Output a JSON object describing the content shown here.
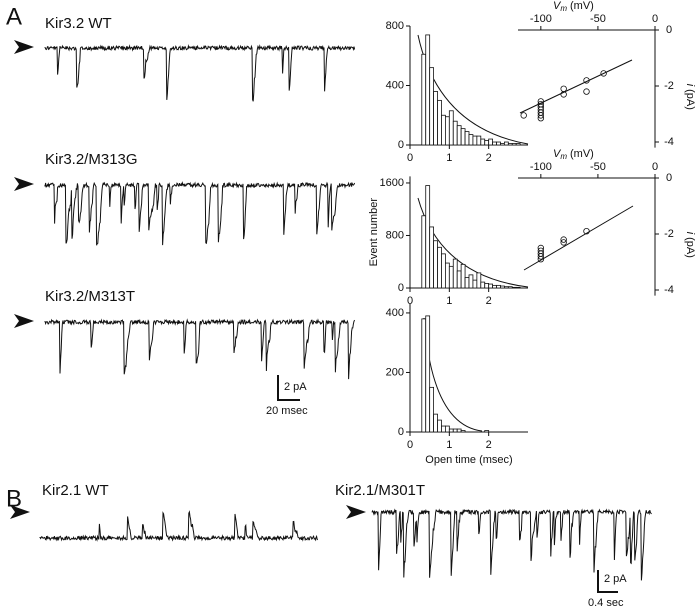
{
  "figure": {
    "panels": [
      "A",
      "B"
    ],
    "traces": [
      "Kir3.2 WT",
      "Kir3.2/M313G",
      "Kir3.2/M313T",
      "Kir2.1 WT",
      "Kir2.1/M301T"
    ],
    "scalebars": [
      {
        "y": "2 pA",
        "x": "20 msec"
      },
      {
        "y": "2 pA",
        "x": "0.4 sec"
      }
    ]
  },
  "chart_data": [
    {
      "type": "histogram",
      "color": "#ffffff",
      "bins": [
        0.3,
        0.4,
        0.5,
        0.6,
        0.7,
        0.8,
        0.9,
        1.0,
        1.1,
        1.2,
        1.3,
        1.4,
        1.5,
        1.6,
        1.7,
        1.8,
        1.9,
        2.0,
        2.1,
        2.2,
        2.3,
        2.4,
        2.5,
        2.6,
        2.7,
        2.8
      ],
      "counts": [
        610,
        740,
        520,
        360,
        300,
        200,
        190,
        230,
        160,
        130,
        110,
        90,
        70,
        60,
        60,
        40,
        30,
        40,
        20,
        20,
        10,
        20,
        10,
        10,
        10
      ],
      "xlim": [
        0,
        3
      ],
      "xticks": [
        0,
        1,
        2
      ],
      "ylim": [
        0,
        800
      ],
      "yticks": [
        0,
        400,
        800
      ]
    },
    {
      "type": "histogram",
      "color": "#ffffff",
      "ylabel": "Event number",
      "bins": [
        0.3,
        0.4,
        0.5,
        0.6,
        0.7,
        0.8,
        0.9,
        1.0,
        1.1,
        1.2,
        1.3,
        1.4,
        1.5,
        1.6,
        1.7,
        1.8,
        1.9,
        2.0,
        2.1,
        2.2,
        2.3,
        2.4,
        2.5,
        2.6,
        2.7,
        2.8
      ],
      "counts": [
        1100,
        1560,
        930,
        720,
        620,
        520,
        380,
        330,
        440,
        260,
        360,
        160,
        200,
        120,
        230,
        90,
        70,
        60,
        40,
        40,
        30,
        20,
        20,
        10,
        10
      ],
      "xlim": [
        0,
        3
      ],
      "xticks": [
        0,
        1,
        2
      ],
      "ylim": [
        0,
        1700
      ],
      "yticks": [
        0,
        800,
        1600
      ]
    },
    {
      "type": "histogram",
      "color": "#ffffff",
      "xlabel": "Open time (msec)",
      "bins": [
        0.3,
        0.4,
        0.5,
        0.6,
        0.7,
        0.8,
        0.9,
        1.0,
        1.1,
        1.2,
        1.3,
        1.4,
        1.5,
        1.6,
        1.7,
        1.8,
        1.9,
        2.0,
        2.1,
        2.2,
        2.3
      ],
      "counts": [
        380,
        390,
        150,
        60,
        40,
        20,
        20,
        10,
        10,
        10,
        5,
        0,
        0,
        0,
        0,
        0,
        5,
        0,
        0,
        0
      ],
      "xlim": [
        0,
        3
      ],
      "xticks": [
        0,
        1,
        2
      ],
      "ylim": [
        0,
        430
      ],
      "yticks": [
        0,
        200,
        400
      ]
    },
    {
      "type": "scatter",
      "color": "#111111",
      "xlabel": {
        "symbol": "V",
        "subscript": "m",
        "unit": "(mV)"
      },
      "ylabel": {
        "symbol": "i",
        "unit": "(pA)"
      },
      "x": [
        -115,
        -100,
        -100,
        -100,
        -100,
        -100,
        -100,
        -100,
        -80,
        -80,
        -60,
        -60,
        -45
      ],
      "y": [
        -3.05,
        -2.55,
        -2.65,
        -2.75,
        -2.85,
        -2.95,
        -3.05,
        -3.15,
        -2.3,
        -2.1,
        -2.2,
        -1.8,
        -1.55
      ],
      "xlim": [
        -120,
        0
      ],
      "xticks": [
        -100,
        -50,
        0
      ],
      "ylim": [
        -4.2,
        0
      ],
      "yticks": [
        0,
        -2,
        -4
      ]
    },
    {
      "type": "scatter",
      "color": "#111111",
      "xlabel": {
        "symbol": "V",
        "subscript": "m",
        "unit": "(mV)"
      },
      "ylabel": {
        "symbol": "i",
        "unit": "(pA)"
      },
      "x": [
        -100,
        -100,
        -100,
        -100,
        -100,
        -80,
        -80,
        -60
      ],
      "y": [
        -2.5,
        -2.6,
        -2.7,
        -2.8,
        -2.9,
        -2.3,
        -2.2,
        -1.9
      ],
      "xlim": [
        -120,
        0
      ],
      "xticks": [
        -100,
        -50,
        0
      ],
      "ylim": [
        -4.2,
        0
      ],
      "yticks": [
        0,
        -2,
        -4
      ]
    }
  ]
}
